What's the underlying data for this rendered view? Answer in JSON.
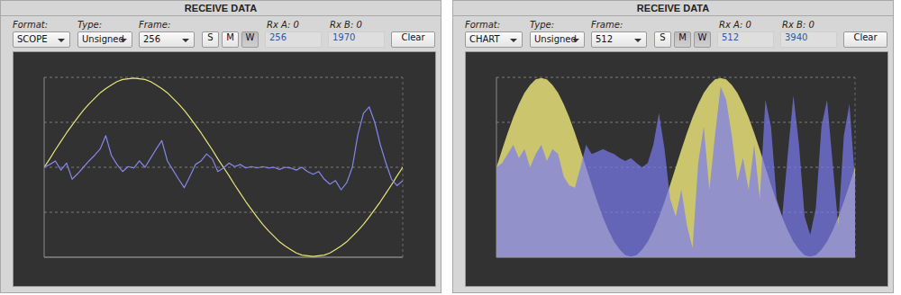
{
  "panels": [
    {
      "title": "RECEIVE DATA",
      "controls": {
        "format": {
          "label": "Format:",
          "value": "SCOPE"
        },
        "type": {
          "label": "Type:",
          "value": "Unsigned"
        },
        "frame": {
          "label": "Frame:",
          "value": "256"
        },
        "buttons": [
          "S",
          "M",
          "W"
        ],
        "active_buttons": [
          "W"
        ],
        "rx_a": {
          "label": "Rx A: 0",
          "value": "256"
        },
        "rx_b": {
          "label": "Rx B: 0",
          "value": "1970"
        },
        "clear": "Clear"
      }
    },
    {
      "title": "RECEIVE DATA",
      "controls": {
        "format": {
          "label": "Format:",
          "value": "CHART"
        },
        "type": {
          "label": "Type:",
          "value": "Unsigned"
        },
        "frame": {
          "label": "Frame:",
          "value": "512"
        },
        "buttons": [
          "S",
          "M",
          "W"
        ],
        "active_buttons": [
          "M",
          "W"
        ],
        "rx_a": {
          "label": "Rx A: 0",
          "value": "512"
        },
        "rx_b": {
          "label": "Rx B: 0",
          "value": "3940"
        },
        "clear": "Clear"
      }
    }
  ],
  "chart_data": [
    {
      "type": "line",
      "x": [
        0,
        4,
        8,
        12,
        16,
        20,
        24,
        28,
        32,
        36,
        40,
        44,
        48,
        52,
        56,
        60,
        64,
        68,
        72,
        76,
        80,
        84,
        88,
        92,
        96,
        100,
        104,
        108,
        112,
        116,
        120,
        124,
        128,
        132,
        136,
        140,
        144,
        148,
        152,
        156,
        160,
        164,
        168,
        172,
        176,
        180,
        184,
        188,
        192,
        196,
        200,
        204,
        208,
        212,
        216,
        220,
        224,
        228,
        232,
        236,
        240,
        244,
        248,
        252,
        256
      ],
      "xlim": [
        0,
        256
      ],
      "ylim": [
        0,
        256
      ],
      "yticks": [
        0,
        64,
        128,
        192,
        256
      ],
      "grid": true,
      "tick_labels": false,
      "series": [
        {
          "color": "#e6e67a",
          "values": [
            128,
            140,
            153,
            165,
            177,
            188,
            199,
            209,
            218,
            226,
            234,
            240,
            245,
            250,
            253,
            254,
            255,
            254,
            253,
            250,
            245,
            240,
            234,
            226,
            218,
            209,
            199,
            188,
            177,
            165,
            153,
            140,
            128,
            116,
            103,
            91,
            79,
            68,
            57,
            47,
            38,
            30,
            22,
            16,
            11,
            6,
            3,
            2,
            1,
            2,
            3,
            6,
            11,
            16,
            22,
            30,
            38,
            47,
            57,
            68,
            79,
            91,
            103,
            116,
            128
          ]
        },
        {
          "color": "#8686ea",
          "values": [
            128,
            132,
            137,
            124,
            134,
            111,
            119,
            128,
            137,
            145,
            154,
            173,
            145,
            132,
            122,
            129,
            127,
            137,
            128,
            141,
            154,
            166,
            137,
            124,
            111,
            99,
            115,
            132,
            137,
            147,
            140,
            122,
            127,
            134,
            129,
            132,
            127,
            129,
            127,
            129,
            127,
            128,
            125,
            128,
            127,
            124,
            128,
            122,
            118,
            122,
            111,
            104,
            109,
            96,
            106,
            128,
            175,
            205,
            214,
            192,
            160,
            134,
            111,
            102,
            109
          ]
        }
      ]
    },
    {
      "type": "area",
      "x": [
        0,
        8,
        16,
        24,
        32,
        40,
        48,
        56,
        64,
        72,
        80,
        88,
        96,
        104,
        112,
        120,
        128,
        136,
        144,
        152,
        160,
        168,
        176,
        184,
        192,
        200,
        208,
        216,
        224,
        232,
        240,
        248,
        256,
        264,
        272,
        280,
        288,
        296,
        304,
        312,
        320,
        328,
        336,
        344,
        352,
        360,
        368,
        376,
        384,
        392,
        400,
        408,
        416,
        424,
        432,
        440,
        448,
        456,
        464,
        472,
        480,
        488,
        496,
        504,
        512
      ],
      "xlim": [
        0,
        512
      ],
      "ylim": [
        0,
        256
      ],
      "yticks": [
        0,
        64,
        128,
        192,
        256
      ],
      "grid": true,
      "tick_labels": false,
      "series": [
        {
          "color": "#cbc66e",
          "values": [
            128,
            153,
            177,
            199,
            218,
            234,
            245,
            253,
            255,
            253,
            245,
            234,
            218,
            199,
            177,
            153,
            128,
            103,
            79,
            57,
            38,
            22,
            11,
            3,
            1,
            3,
            11,
            22,
            38,
            57,
            79,
            103,
            128,
            153,
            177,
            199,
            218,
            234,
            245,
            253,
            255,
            253,
            245,
            234,
            218,
            199,
            177,
            153,
            128,
            103,
            79,
            57,
            38,
            22,
            11,
            3,
            1,
            3,
            11,
            22,
            38,
            57,
            79,
            103,
            128
          ]
        },
        {
          "color": "#7a7af0",
          "values": [
            128,
            134,
            147,
            160,
            141,
            154,
            128,
            147,
            160,
            137,
            154,
            147,
            115,
            102,
            99,
            128,
            160,
            147,
            150,
            154,
            150,
            147,
            141,
            137,
            141,
            134,
            128,
            134,
            160,
            205,
            154,
            83,
            58,
            96,
            45,
            13,
            134,
            186,
            96,
            173,
            243,
            224,
            173,
            109,
            141,
            96,
            160,
            83,
            224,
            186,
            83,
            58,
            147,
            230,
            160,
            58,
            32,
            70,
            186,
            224,
            134,
            45,
            173,
            218,
            109
          ]
        }
      ]
    }
  ]
}
